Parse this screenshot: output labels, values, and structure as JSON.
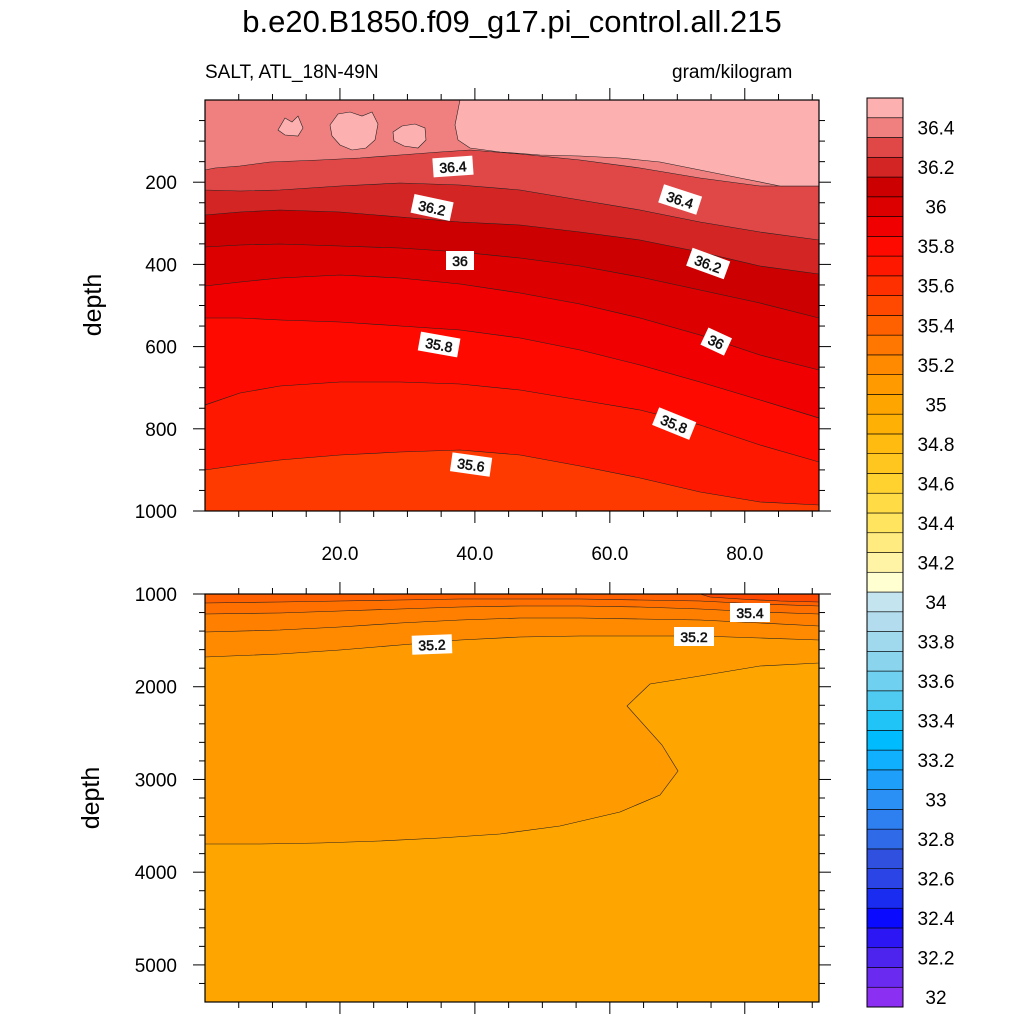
{
  "chart_data": {
    "type": "contour",
    "title": "b.e20.B1850.f09_g17.pi_control.all.215",
    "subtitle_left": "SALT, ATL_18N-49N",
    "subtitle_right": "gram/kilogram",
    "colorbar": {
      "levels": [
        32,
        32.1,
        32.2,
        32.3,
        32.4,
        32.5,
        32.6,
        32.7,
        32.8,
        32.9,
        33,
        33.1,
        33.2,
        33.3,
        33.4,
        33.5,
        33.6,
        33.7,
        33.8,
        33.9,
        34,
        34.1,
        34.2,
        34.3,
        34.4,
        34.5,
        34.6,
        34.7,
        34.8,
        34.9,
        35,
        35.1,
        35.2,
        35.3,
        35.4,
        35.5,
        35.6,
        35.7,
        35.8,
        35.9,
        36,
        36.1,
        36.2,
        36.3,
        36.4,
        36.5
      ],
      "labels": [
        "32",
        "32.2",
        "32.4",
        "32.6",
        "32.8",
        "33",
        "33.2",
        "33.4",
        "33.6",
        "33.8",
        "34",
        "34.2",
        "34.4",
        "34.6",
        "34.8",
        "35",
        "35.2",
        "35.4",
        "35.6",
        "35.8",
        "36",
        "36.2",
        "36.4"
      ],
      "colors": [
        "#8b2ff2",
        "#6a2af0",
        "#4c24ee",
        "#2d16f4",
        "#0a0aff",
        "#1a2cf0",
        "#2b44e6",
        "#3050e0",
        "#2f6ae8",
        "#2e7ff0",
        "#2a90f5",
        "#1ea0fa",
        "#10b0ff",
        "#00bcff",
        "#20c4f6",
        "#4fcbf2",
        "#6fd0f0",
        "#8ad4ee",
        "#a0d8ee",
        "#b3ddee",
        "#c4e4ef",
        "#ffffd2",
        "#fff3a6",
        "#ffeb80",
        "#ffe55f",
        "#ffdc45",
        "#ffd230",
        "#ffc61f",
        "#ffbb10",
        "#ffb005",
        "#ffa500",
        "#ff9a00",
        "#ff8a00",
        "#ff7600",
        "#ff6000",
        "#ff4800",
        "#ff3000",
        "#ff1800",
        "#ff0a00",
        "#f00000",
        "#dc0000",
        "#cc0000",
        "#d42525",
        "#e04848",
        "#f08080",
        "#fcb0b0"
      ]
    },
    "top_panel": {
      "ylabel": "depth",
      "yrange": [
        0,
        1000
      ],
      "yticks": [
        "200",
        "400",
        "600",
        "800",
        "1000"
      ],
      "xrange": [
        0,
        91
      ],
      "xticks": [
        "20.0",
        "40.0",
        "60.0",
        "80.0"
      ],
      "contour_labels": [
        "36.4",
        "36.2",
        "36",
        "36.4",
        "36.2",
        "36",
        "35.8",
        "35.8",
        "35.6"
      ]
    },
    "bottom_panel": {
      "ylabel": "depth",
      "yrange": [
        1000,
        5400
      ],
      "yticks": [
        "1000",
        "2000",
        "3000",
        "4000",
        "5000"
      ],
      "xrange": [
        0,
        91
      ],
      "contour_labels": [
        "35.4",
        "35.2",
        "35.2"
      ]
    }
  }
}
